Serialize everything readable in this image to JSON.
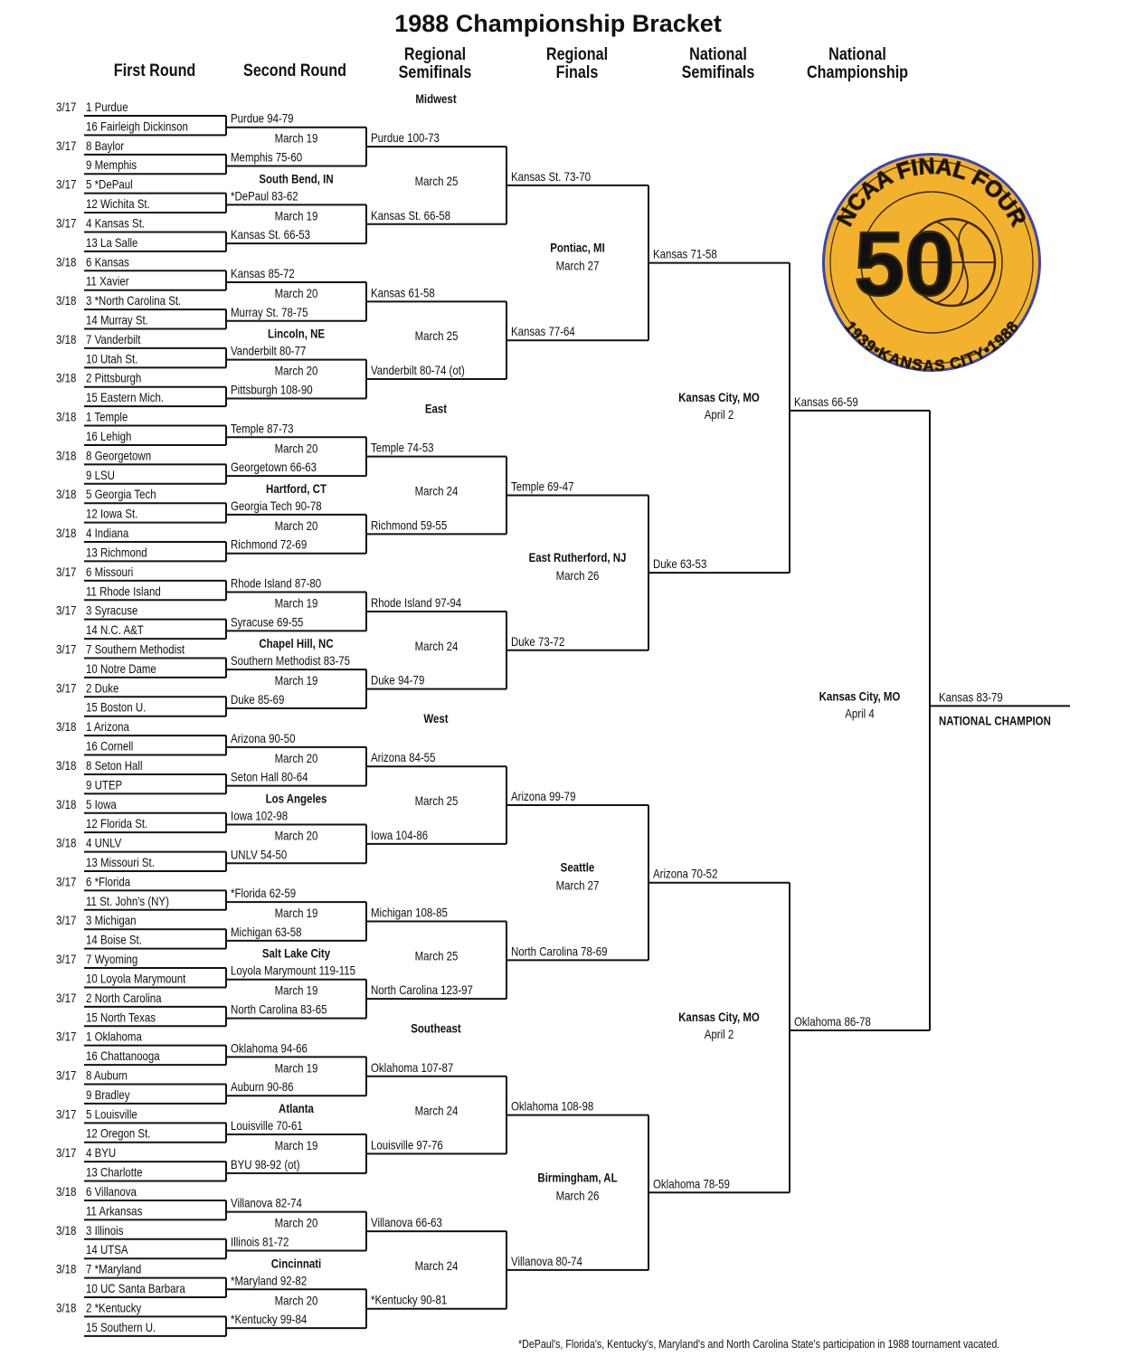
{
  "title": "1988 Championship Bracket",
  "column_headers": [
    [
      "First Round"
    ],
    [
      "Second  Round"
    ],
    [
      "Regional",
      "Semifinals"
    ],
    [
      "Regional",
      "Finals"
    ],
    [
      "National",
      "Semifinals"
    ],
    [
      "National",
      "Championship"
    ]
  ],
  "regions": [
    "Midwest",
    "East",
    "West",
    "Southeast"
  ],
  "first_round": [
    {
      "date": "3/17",
      "teams": [
        "1 Purdue",
        "16 Fairleigh Dickinson"
      ]
    },
    {
      "date": "3/17",
      "teams": [
        "8 Baylor",
        "9 Memphis"
      ]
    },
    {
      "date": "3/17",
      "teams": [
        "5 *DePaul",
        "12 Wichita St."
      ]
    },
    {
      "date": "3/17",
      "teams": [
        "4 Kansas St.",
        "13 La Salle"
      ]
    },
    {
      "date": "3/18",
      "teams": [
        "6 Kansas",
        "11 Xavier"
      ]
    },
    {
      "date": "3/18",
      "teams": [
        "3 *North Carolina St.",
        "14 Murray St."
      ]
    },
    {
      "date": "3/18",
      "teams": [
        "7 Vanderbilt",
        "10 Utah St."
      ]
    },
    {
      "date": "3/18",
      "teams": [
        "2 Pittsburgh",
        "15 Eastern Mich."
      ]
    },
    {
      "date": "3/18",
      "teams": [
        "1 Temple",
        "16 Lehigh"
      ]
    },
    {
      "date": "3/18",
      "teams": [
        "8 Georgetown",
        "9 LSU"
      ]
    },
    {
      "date": "3/18",
      "teams": [
        "5 Georgia Tech",
        "12 Iowa St."
      ]
    },
    {
      "date": "3/18",
      "teams": [
        "4 Indiana",
        "13 Richmond"
      ]
    },
    {
      "date": "3/17",
      "teams": [
        "6 Missouri",
        "11 Rhode Island"
      ]
    },
    {
      "date": "3/17",
      "teams": [
        "3 Syracuse",
        "14 N.C. A&T"
      ]
    },
    {
      "date": "3/17",
      "teams": [
        "7 Southern Methodist",
        "10 Notre Dame"
      ]
    },
    {
      "date": "3/17",
      "teams": [
        "2 Duke",
        "15 Boston U."
      ]
    },
    {
      "date": "3/18",
      "teams": [
        "1 Arizona",
        "16 Cornell"
      ]
    },
    {
      "date": "3/18",
      "teams": [
        "8 Seton Hall",
        "9 UTEP"
      ]
    },
    {
      "date": "3/18",
      "teams": [
        "5 Iowa",
        "12 Florida St."
      ]
    },
    {
      "date": "3/18",
      "teams": [
        "4 UNLV",
        "13 Missouri St."
      ]
    },
    {
      "date": "3/17",
      "teams": [
        "6 *Florida",
        "11 St. John's (NY)"
      ]
    },
    {
      "date": "3/17",
      "teams": [
        "3 Michigan",
        "14 Boise St."
      ]
    },
    {
      "date": "3/17",
      "teams": [
        "7 Wyoming",
        "10 Loyola Marymount"
      ]
    },
    {
      "date": "3/17",
      "teams": [
        "2 North Carolina",
        "15 North Texas"
      ]
    },
    {
      "date": "3/17",
      "teams": [
        "1 Oklahoma",
        "16 Chattanooga"
      ]
    },
    {
      "date": "3/17",
      "teams": [
        "8 Auburn",
        "9 Bradley"
      ]
    },
    {
      "date": "3/17",
      "teams": [
        "5 Louisville",
        "12 Oregon St."
      ]
    },
    {
      "date": "3/17",
      "teams": [
        "4 BYU",
        "13 Charlotte"
      ]
    },
    {
      "date": "3/18",
      "teams": [
        "6 Villanova",
        "11 Arkansas"
      ]
    },
    {
      "date": "3/18",
      "teams": [
        "3 Illinois",
        "14 UTSA"
      ]
    },
    {
      "date": "3/18",
      "teams": [
        "7 *Maryland",
        "10 UC Santa Barbara"
      ]
    },
    {
      "date": "3/18",
      "teams": [
        "2 *Kentucky",
        "15 Southern U."
      ]
    }
  ],
  "second_round": {
    "winners": [
      "Purdue 94-79",
      "Memphis 75-60",
      "*DePaul 83-62",
      "Kansas St. 66-53",
      "Kansas 85-72",
      "Murray St. 78-75",
      "Vanderbilt 80-77",
      "Pittsburgh 108-90",
      "Temple 87-73",
      "Georgetown 66-63",
      "Georgia Tech 90-78",
      "Richmond 72-69",
      "Rhode Island 87-80",
      "Syracuse 69-55",
      "Southern Methodist 83-75",
      "Duke 85-69",
      "Arizona 90-50",
      "Seton Hall 80-64",
      "Iowa 102-98",
      "UNLV 54-50",
      "*Florida 62-59",
      "Michigan 63-58",
      "Loyola Marymount 119-115",
      "North Carolina 83-65",
      "Oklahoma 94-66",
      "Auburn 90-86",
      "Louisville 70-61",
      "BYU 98-92 (ot)",
      "Villanova 82-74",
      "Illinois 81-72",
      "*Maryland 92-82",
      "*Kentucky 99-84"
    ],
    "dates": [
      "March 19",
      "March 19",
      "March 20",
      "March 20",
      "March 20",
      "March 20",
      "March 19",
      "March 19",
      "March 20",
      "March 20",
      "March 19",
      "March 19",
      "March 19",
      "March 19",
      "March 20",
      "March 20"
    ],
    "sites": [
      "South Bend, IN",
      "Lincoln, NE",
      "Hartford, CT",
      "Chapel Hill, NC",
      "Los Angeles",
      "Salt Lake City",
      "Atlanta",
      "Cincinnati"
    ]
  },
  "regional_semifinals": {
    "winners": [
      "Purdue 100-73",
      "Kansas St. 66-58",
      "Kansas 61-58",
      "Vanderbilt 80-74 (ot)",
      "Temple 74-53",
      "Richmond 59-55",
      "Rhode Island 97-94",
      "Duke 94-79",
      "Arizona 84-55",
      "Iowa 104-86",
      "Michigan 108-85",
      "North Carolina 123-97",
      "Oklahoma 107-87",
      "Louisville 97-76",
      "Villanova 66-63",
      "*Kentucky 90-81"
    ],
    "dates": [
      "March 25",
      "March 25",
      "March 24",
      "March 24",
      "March 25",
      "March 25",
      "March 24",
      "March 24"
    ]
  },
  "regional_finals": {
    "winners": [
      "Kansas St. 73-70",
      "Kansas 77-64",
      "Temple 69-47",
      "Duke 73-72",
      "Arizona 99-79",
      "North Carolina 78-69",
      "Oklahoma 108-98",
      "Villanova 80-74"
    ],
    "venues": [
      {
        "site": "Pontiac, MI",
        "date": "March 27"
      },
      {
        "site": "East Rutherford, NJ",
        "date": "March 26"
      },
      {
        "site": "Seattle",
        "date": "March 27"
      },
      {
        "site": "Birmingham, AL",
        "date": "March 26"
      }
    ]
  },
  "national_semifinals": {
    "winners": [
      "Kansas 71-58",
      "Duke 63-53",
      "Arizona 70-52",
      "Oklahoma 78-59"
    ],
    "venues": [
      {
        "site": "Kansas City, MO",
        "date": "April 2"
      },
      {
        "site": "Kansas City, MO",
        "date": "April 2"
      }
    ]
  },
  "national_championship": {
    "winners": [
      "Kansas 66-59",
      "Oklahoma 86-78"
    ],
    "venue": {
      "site": "Kansas City, MO",
      "date": "April 4"
    }
  },
  "champion": {
    "result": "Kansas 83-79",
    "label": "NATIONAL CHAMPION"
  },
  "logo": {
    "top_text": "NCAA FINAL FOUR",
    "number": "50",
    "bottom_text": "1939•KANSAS CITY•1988",
    "fill_color": "#F3B22E",
    "ring_color": "#3B45B0"
  },
  "footnote": "*DePaul's, Florida's, Kentucky's, Maryland's and North Carolina State's participation in 1988 tournament vacated."
}
